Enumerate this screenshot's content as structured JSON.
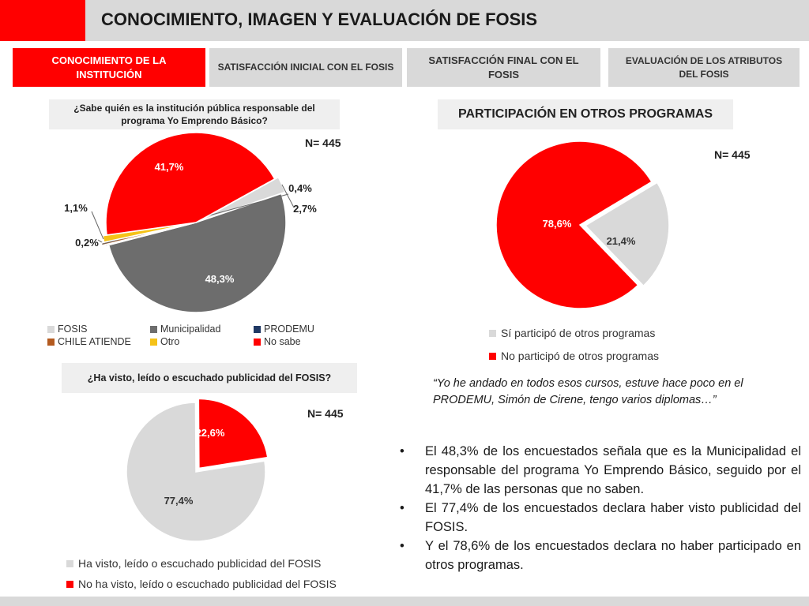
{
  "page": {
    "title": "CONOCIMIENTO, IMAGEN Y EVALUACIÓN DE FOSIS",
    "accent_color": "#ff0000"
  },
  "tabs": [
    {
      "label": "CONOCIMIENTO DE LA INSTITUCIÓN",
      "active": true
    },
    {
      "label": "SATISFACCIÓN INICIAL CON EL FOSIS",
      "active": false
    },
    {
      "label": "SATISFACCIÓN FINAL CON EL FOSIS",
      "active": false
    },
    {
      "label": "EVALUACIÓN DE LOS ATRIBUTOS DEL FOSIS",
      "active": false
    }
  ],
  "chart_data": [
    {
      "type": "pie",
      "title": "¿Sabe quién es la institución pública responsable del programa Yo Emprendo Básico?",
      "n_label": "N= 445",
      "slices": [
        {
          "name": "FOSIS",
          "value": 2.7,
          "label": "2,7%",
          "color": "#d9d9d9"
        },
        {
          "name": "Municipalidad",
          "value": 48.3,
          "label": "48,3%",
          "color": "#6d6d6d"
        },
        {
          "name": "PRODEMU",
          "value": 0.2,
          "label": "0,2%",
          "color": "#1f3864"
        },
        {
          "name": "CHILE ATIENDE",
          "value": 0.4,
          "label": "0,4%",
          "color": "#b35a1f"
        },
        {
          "name": "Otro",
          "value": 1.1,
          "label": "1,1%",
          "color": "#f5c218"
        },
        {
          "name": "No sabe",
          "value": 41.7,
          "label": "41,7%",
          "color": "#ff0000"
        }
      ],
      "legend": [
        "FOSIS",
        "Municipalidad",
        "PRODEMU",
        "CHILE ATIENDE",
        "Otro",
        "No sabe"
      ],
      "legend_position": "bottom"
    },
    {
      "type": "pie",
      "title": "¿Ha visto, leído o escuchado publicidad del FOSIS?",
      "n_label": "N= 445",
      "slices": [
        {
          "name": "Ha visto, leído o escuchado publicidad del FOSIS",
          "value": 77.4,
          "label": "77,4%",
          "color": "#d9d9d9"
        },
        {
          "name": "No ha visto, leído o escuchado publicidad del FOSIS",
          "value": 22.6,
          "label": "22,6%",
          "color": "#ff0000"
        }
      ],
      "legend": [
        "Ha visto, leído o escuchado publicidad del FOSIS",
        "No ha visto, leído o escuchado publicidad del FOSIS"
      ],
      "legend_position": "bottom"
    },
    {
      "type": "pie",
      "title": "PARTICIPACIÓN EN OTROS PROGRAMAS",
      "n_label": "N= 445",
      "slices": [
        {
          "name": "Sí participó de otros programas",
          "value": 21.4,
          "label": "21,4%",
          "color": "#d9d9d9"
        },
        {
          "name": "No participó de otros programas",
          "value": 78.6,
          "label": "78,6%",
          "color": "#ff0000"
        }
      ],
      "legend": [
        "Sí participó de otros programas",
        "No participó de otros programas"
      ],
      "legend_position": "bottom"
    }
  ],
  "quote": "“Yo he andado en todos esos cursos, estuve hace poco en el PRODEMU, Simón de Cirene, tengo varios diplomas…”",
  "bullets": [
    "El 48,3% de los encuestados señala que es la Municipalidad el responsable del programa Yo Emprendo Básico, seguido por el 41,7% de las personas que no saben.",
    "El 77,4% de los encuestados declara haber visto publicidad del FOSIS.",
    "Y el 78,6% de los encuestados declara no haber participado en otros programas."
  ]
}
